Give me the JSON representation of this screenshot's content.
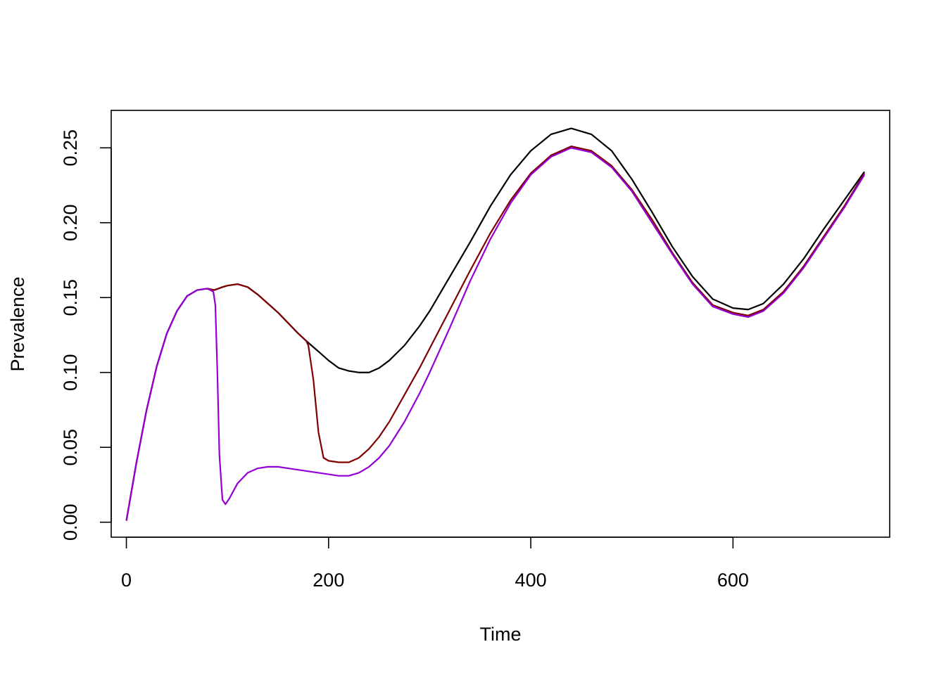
{
  "chart_data": {
    "type": "line",
    "title": "",
    "xlabel": "Time",
    "ylabel": "Prevalence",
    "xlim": [
      -15,
      755
    ],
    "ylim": [
      -0.01,
      0.275
    ],
    "x_ticks": [
      0,
      200,
      400,
      600
    ],
    "x_tick_labels": [
      "0",
      "200",
      "400",
      "600"
    ],
    "y_ticks": [
      0.0,
      0.05,
      0.1,
      0.15,
      0.2,
      0.25
    ],
    "y_tick_labels": [
      "0.00",
      "0.05",
      "0.10",
      "0.15",
      "0.20",
      "0.25"
    ],
    "grid": false,
    "legend": "none",
    "series": [
      {
        "color": "#000000",
        "x": [
          0,
          10,
          20,
          30,
          40,
          50,
          60,
          70,
          80,
          87,
          95,
          100,
          110,
          120,
          130,
          140,
          150,
          160,
          170,
          178,
          190,
          200,
          210,
          220,
          230,
          240,
          250,
          260,
          275,
          290,
          300,
          320,
          340,
          360,
          380,
          400,
          420,
          440,
          460,
          480,
          500,
          520,
          540,
          560,
          580,
          600,
          615,
          630,
          650,
          670,
          690,
          710,
          730
        ],
        "y": [
          0.001,
          0.04,
          0.075,
          0.104,
          0.126,
          0.141,
          0.151,
          0.155,
          0.156,
          0.155,
          0.157,
          0.158,
          0.159,
          0.157,
          0.152,
          0.146,
          0.14,
          0.133,
          0.126,
          0.121,
          0.114,
          0.108,
          0.103,
          0.101,
          0.1,
          0.1,
          0.103,
          0.108,
          0.118,
          0.131,
          0.141,
          0.164,
          0.187,
          0.211,
          0.232,
          0.248,
          0.259,
          0.263,
          0.259,
          0.248,
          0.229,
          0.207,
          0.184,
          0.164,
          0.149,
          0.143,
          0.142,
          0.146,
          0.159,
          0.176,
          0.196,
          0.215,
          0.234
        ]
      },
      {
        "color": "#800000",
        "x": [
          0,
          10,
          20,
          30,
          40,
          50,
          60,
          70,
          80,
          87,
          95,
          100,
          110,
          120,
          130,
          140,
          150,
          160,
          170,
          178,
          180,
          185,
          190,
          195,
          200,
          210,
          220,
          230,
          240,
          250,
          260,
          275,
          290,
          300,
          320,
          340,
          360,
          380,
          400,
          420,
          440,
          460,
          480,
          500,
          520,
          540,
          560,
          580,
          600,
          615,
          630,
          650,
          670,
          690,
          710,
          730
        ],
        "y": [
          0.001,
          0.04,
          0.075,
          0.104,
          0.126,
          0.141,
          0.151,
          0.155,
          0.156,
          0.155,
          0.157,
          0.158,
          0.159,
          0.157,
          0.152,
          0.146,
          0.14,
          0.133,
          0.126,
          0.121,
          0.118,
          0.095,
          0.06,
          0.043,
          0.041,
          0.04,
          0.04,
          0.043,
          0.049,
          0.057,
          0.067,
          0.085,
          0.103,
          0.116,
          0.142,
          0.168,
          0.193,
          0.215,
          0.233,
          0.245,
          0.251,
          0.248,
          0.238,
          0.222,
          0.202,
          0.18,
          0.16,
          0.145,
          0.14,
          0.138,
          0.142,
          0.154,
          0.171,
          0.191,
          0.211,
          0.233
        ]
      },
      {
        "color": "#9400D3",
        "x": [
          0,
          10,
          20,
          30,
          40,
          50,
          60,
          70,
          80,
          86,
          88,
          90,
          92,
          95,
          98,
          102,
          110,
          120,
          130,
          140,
          150,
          160,
          170,
          180,
          190,
          200,
          210,
          220,
          230,
          240,
          250,
          260,
          275,
          290,
          300,
          320,
          340,
          360,
          380,
          400,
          420,
          440,
          460,
          480,
          500,
          520,
          540,
          560,
          580,
          600,
          615,
          630,
          650,
          670,
          690,
          710,
          730
        ],
        "y": [
          0.001,
          0.04,
          0.075,
          0.104,
          0.126,
          0.141,
          0.151,
          0.155,
          0.156,
          0.154,
          0.145,
          0.1,
          0.045,
          0.015,
          0.012,
          0.016,
          0.026,
          0.033,
          0.036,
          0.037,
          0.037,
          0.036,
          0.035,
          0.034,
          0.033,
          0.032,
          0.031,
          0.031,
          0.033,
          0.037,
          0.043,
          0.051,
          0.067,
          0.086,
          0.1,
          0.13,
          0.161,
          0.189,
          0.213,
          0.232,
          0.244,
          0.25,
          0.247,
          0.237,
          0.221,
          0.2,
          0.179,
          0.159,
          0.144,
          0.139,
          0.137,
          0.141,
          0.153,
          0.17,
          0.19,
          0.21,
          0.232
        ]
      }
    ]
  }
}
